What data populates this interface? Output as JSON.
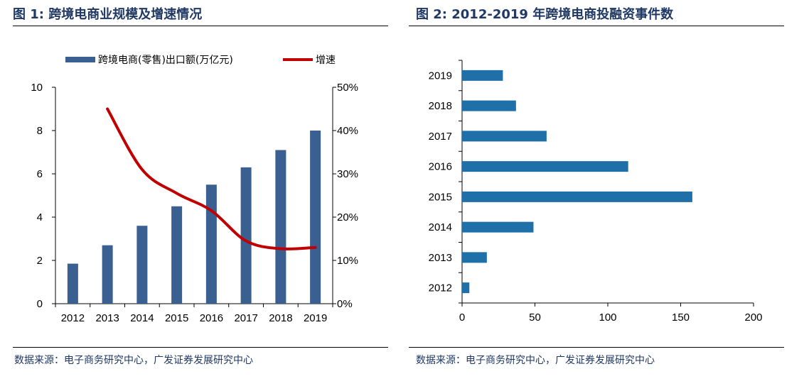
{
  "figure1": {
    "title": "图 1:  跨境电商业规模及增速情况",
    "source": "数据来源：电子商务研究中心，广发证券发展研究中心"
  },
  "figure2": {
    "title": "图 2:  2012-2019 年跨境电商投融资事件数",
    "source": "数据来源：电子商务研究中心，广发证券发展研究中心"
  },
  "chart_data": [
    {
      "type": "bar",
      "title": "跨境电商业规模及增速情况",
      "categories": [
        "2012",
        "2013",
        "2014",
        "2015",
        "2016",
        "2017",
        "2018",
        "2019"
      ],
      "series": [
        {
          "name": "跨境电商(零售)出口额(万亿元)",
          "type": "bar",
          "axis": "left",
          "color": "#3a5f91",
          "values": [
            1.85,
            2.7,
            3.6,
            4.5,
            5.5,
            6.3,
            7.1,
            8.0
          ]
        },
        {
          "name": "增速",
          "type": "line",
          "axis": "right",
          "color": "#c00000",
          "values": [
            null,
            45,
            31,
            25.5,
            21.5,
            14.5,
            12.7,
            13
          ]
        }
      ],
      "left_axis": {
        "ylim": [
          0,
          10
        ],
        "ticks": [
          "0",
          "2",
          "4",
          "6",
          "8",
          "10"
        ]
      },
      "right_axis": {
        "ylim": [
          0,
          50
        ],
        "ticks": [
          "0%",
          "10%",
          "20%",
          "30%",
          "40%",
          "50%"
        ]
      },
      "legend_position": "top",
      "grid": false
    },
    {
      "type": "bar",
      "orientation": "horizontal",
      "title": "2012-2019 年跨境电商投融资事件数",
      "categories": [
        "2019",
        "2018",
        "2017",
        "2016",
        "2015",
        "2014",
        "2013",
        "2012"
      ],
      "values": [
        28,
        37,
        58,
        114,
        158,
        49,
        17,
        5
      ],
      "color": "#1f6fa8",
      "xlim": [
        0,
        200
      ],
      "xticks": [
        "0",
        "50",
        "100",
        "150",
        "200"
      ],
      "grid": false
    }
  ]
}
